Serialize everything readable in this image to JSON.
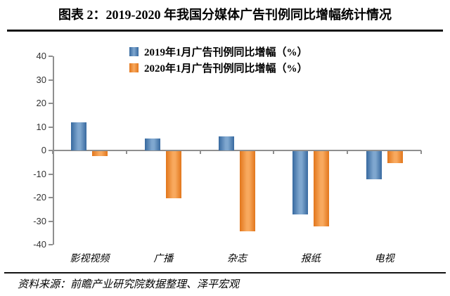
{
  "title": "图表 2：2019-2020 年我国分媒体广告刊例同比增幅统计情况",
  "source": "资料来源：前瞻产业研究院数据整理、泽平宏观",
  "colors": {
    "series_2019": "#4F81BD",
    "series_2019_edge": "#37699f",
    "series_2019_center": "#7fa7cf",
    "series_2020": "#F79646",
    "series_2020_edge": "#e2761b",
    "series_2020_center": "#f8a95e",
    "axis": "#8f8f8f",
    "rule": "#141414",
    "text": "#000000"
  },
  "chart_data": {
    "type": "bar",
    "title": "图表 2：2019-2020 年我国分媒体广告刊例同比增幅统计情况",
    "categories": [
      "影视视频",
      "广播",
      "杂志",
      "报纸",
      "电视"
    ],
    "series": [
      {
        "name": "2019年1月广告刊例同比增幅（%）",
        "color": "#4F81BD",
        "values": [
          12,
          5,
          6,
          -27,
          -12
        ]
      },
      {
        "name": "2020年1月广告刊例同比增幅（%）",
        "color": "#F79646",
        "values": [
          -2,
          -20,
          -34,
          -32,
          -5
        ]
      }
    ],
    "xlabel": "",
    "ylabel": "",
    "ylim": [
      -40,
      40
    ],
    "yticks": [
      40,
      30,
      20,
      10,
      0,
      -10,
      -20,
      -30,
      -40
    ],
    "grid": false,
    "legend_position": "top-center"
  }
}
